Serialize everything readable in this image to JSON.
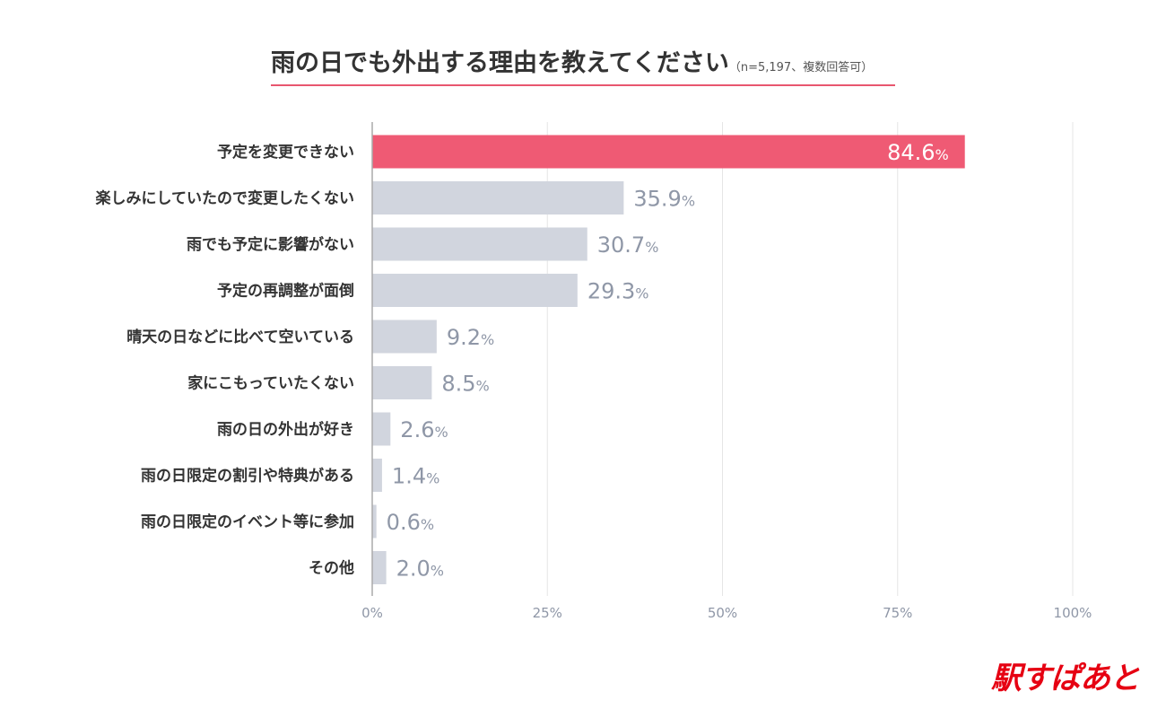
{
  "title": "雨の日でも外出する理由を教えてください",
  "subtitle": "（n=5,197、複数回答可）",
  "brand": "駅すぱあと",
  "colors": {
    "highlight": "#ef5a74",
    "bar": "#d1d5de",
    "grid": "#e6e6e6",
    "axis": "#aaaaaa",
    "tick": "#8f97a7",
    "value_muted": "#8f97a7",
    "brand": "#e60012"
  },
  "chart_data": {
    "type": "bar",
    "orientation": "horizontal",
    "title": "雨の日でも外出する理由を教えてください",
    "categories": [
      "予定を変更できない",
      "楽しみにしていたので変更したくない",
      "雨でも予定に影響がない",
      "予定の再調整が面倒",
      "晴天の日などに比べて空いている",
      "家にこもっていたくない",
      "雨の日の外出が好き",
      "雨の日限定の割引や特典がある",
      "雨の日限定のイベント等に参加",
      "その他"
    ],
    "values": [
      84.6,
      35.9,
      30.7,
      29.3,
      9.2,
      8.5,
      2.6,
      1.4,
      0.6,
      2.0
    ],
    "value_labels": [
      "84.6",
      "35.9",
      "30.7",
      "29.3",
      "9.2",
      "8.5",
      "2.6",
      "1.4",
      "0.6",
      "2.0"
    ],
    "unit": "%",
    "xlim": [
      0,
      100
    ],
    "xticks": [
      0,
      25,
      50,
      75,
      100
    ],
    "xtick_labels": [
      "0%",
      "25%",
      "50%",
      "75%",
      "100%"
    ],
    "grid": true,
    "highlight_index": 0
  }
}
